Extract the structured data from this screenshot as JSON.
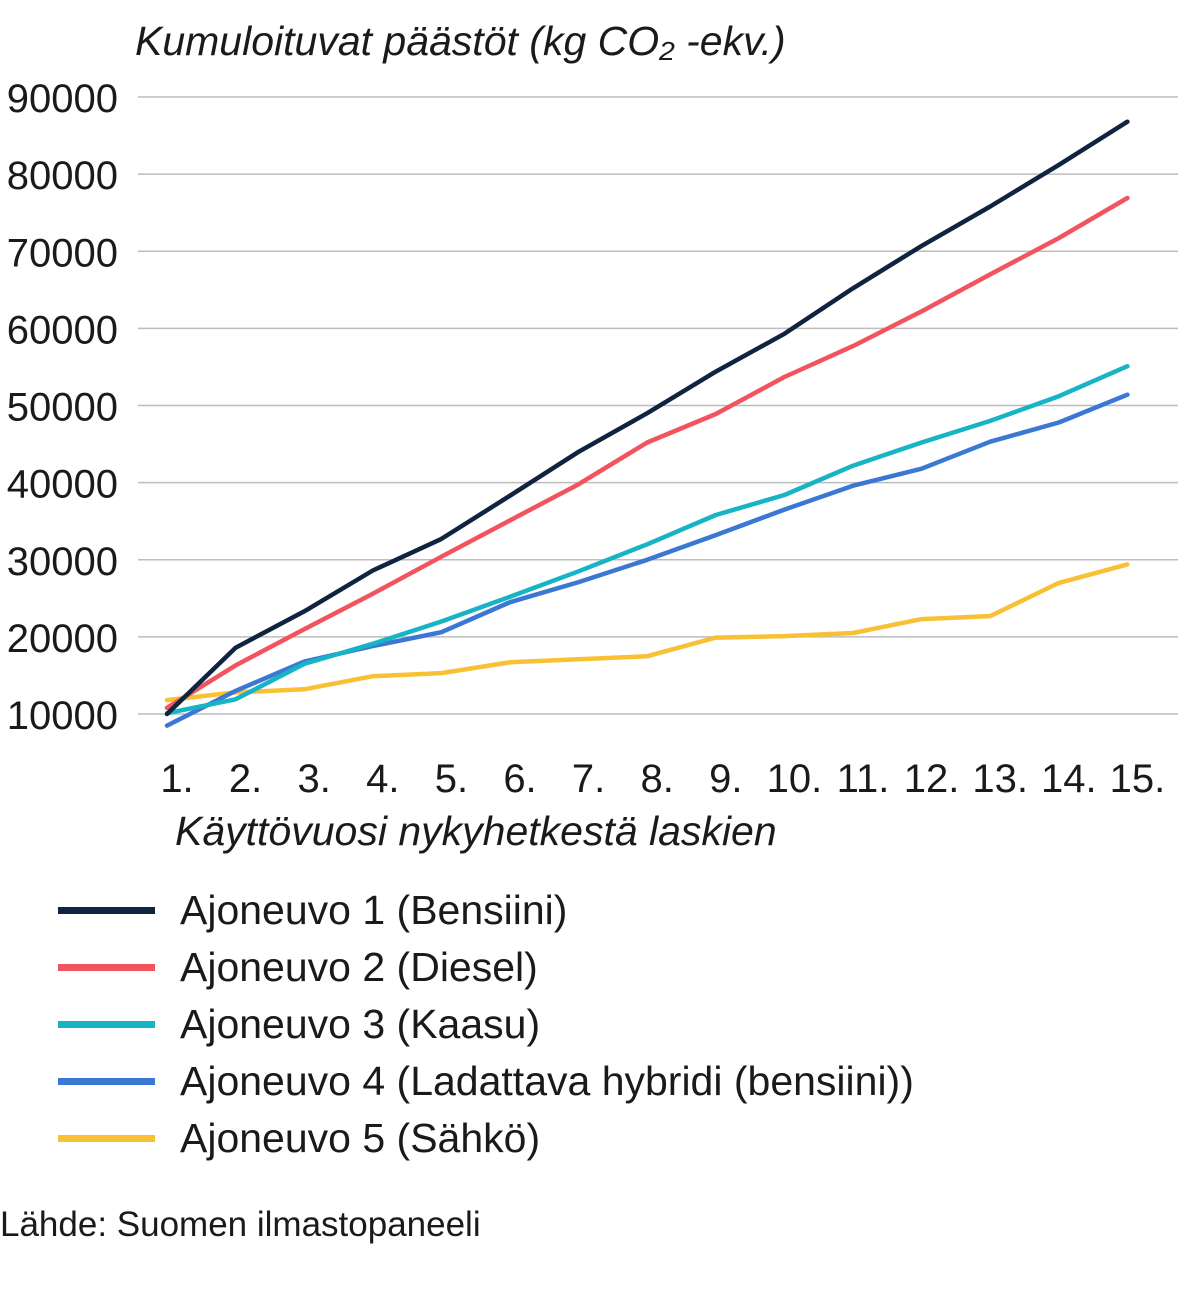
{
  "chart_data": {
    "type": "line",
    "ylabel": "Kumuloituvat päästöt (kg CO₂ -ekv.)",
    "xlabel": "Käyttövuosi nykyhetkestä laskien",
    "categories": [
      "1.",
      "2.",
      "3.",
      "4.",
      "5.",
      "6.",
      "7.",
      "8.",
      "9.",
      "10.",
      "11.",
      "12.",
      "13.",
      "14.",
      "15."
    ],
    "y_ticks": [
      "10000",
      "20000",
      "30000",
      "40000",
      "50000",
      "60000",
      "70000",
      "80000",
      "90000"
    ],
    "ylim": [
      10000,
      90000
    ],
    "grid": "horizontal",
    "legend_position": "bottom",
    "series": [
      {
        "name": "Ajoneuvo 1 (Bensiini)",
        "color": "#0f2440",
        "values": [
          10000,
          18600,
          23300,
          28600,
          32700,
          38300,
          44000,
          49000,
          54400,
          59300,
          65200,
          70700,
          75800,
          81200,
          86800
        ]
      },
      {
        "name": "Ajoneuvo 2 (Diesel)",
        "color": "#f2545f",
        "values": [
          10800,
          16300,
          21000,
          25600,
          30400,
          35100,
          39800,
          45200,
          48900,
          53700,
          57700,
          62200,
          67000,
          71700,
          76900
        ]
      },
      {
        "name": "Ajoneuvo 3 (Kaasu)",
        "color": "#17b4c6",
        "values": [
          10100,
          11900,
          16500,
          19100,
          22000,
          25200,
          28500,
          32000,
          35800,
          38400,
          42200,
          45200,
          48000,
          51200,
          55100
        ]
      },
      {
        "name": "Ajoneuvo 4 (Ladattava hybridi (bensiini))",
        "color": "#3b78d4",
        "values": [
          8500,
          13000,
          16800,
          18800,
          20600,
          24500,
          27100,
          30000,
          33200,
          36500,
          39600,
          41800,
          45300,
          47800,
          51400
        ]
      },
      {
        "name": "Ajoneuvo 5 (Sähkö)",
        "color": "#f7c133",
        "values": [
          11800,
          12800,
          13200,
          14900,
          15300,
          16700,
          17100,
          17500,
          19900,
          20100,
          20500,
          22300,
          22700,
          27000,
          29400
        ]
      }
    ]
  },
  "source": "Lähde: Suomen ilmastopaneeli"
}
